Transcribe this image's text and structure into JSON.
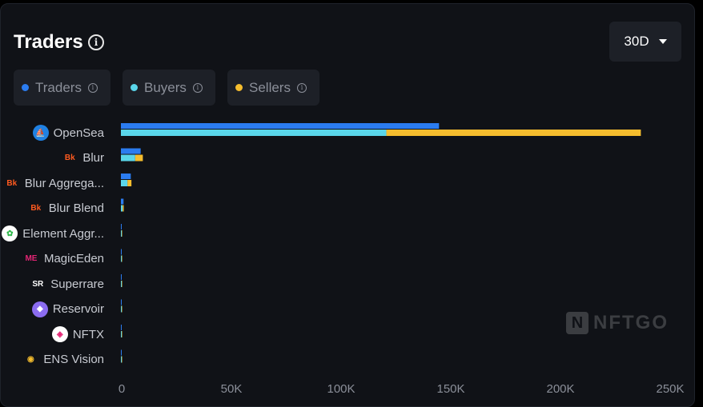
{
  "header": {
    "title": "Traders",
    "range_label": "30D"
  },
  "legend": [
    {
      "label": "Traders",
      "color": "#2b7cf0"
    },
    {
      "label": "Buyers",
      "color": "#5ad6ea"
    },
    {
      "label": "Sellers",
      "color": "#f5bd2e"
    }
  ],
  "watermark": "NFTGO",
  "chart_data": {
    "type": "bar",
    "orientation": "horizontal",
    "categories": [
      "OpenSea",
      "Blur",
      "Blur Aggrega...",
      "Blur Blend",
      "Element Aggr...",
      "MagicEden",
      "Superrare",
      "Reservoir",
      "NFTX",
      "ENS Vision"
    ],
    "category_icons": [
      "opensea-icon",
      "blur-icon",
      "blur-icon",
      "blur-icon",
      "element-icon",
      "magiceden-icon",
      "superrare-icon",
      "reservoir-icon",
      "nftx-icon",
      "ens-vision-icon"
    ],
    "series": [
      {
        "name": "Traders",
        "values": [
          145000,
          9000,
          4500,
          1200,
          300,
          300,
          200,
          200,
          200,
          100
        ]
      },
      {
        "name": "Buyers",
        "values": [
          121000,
          6500,
          3000,
          800,
          200,
          200,
          150,
          150,
          150,
          80
        ]
      },
      {
        "name": "Sellers",
        "values": [
          116000,
          3500,
          1800,
          500,
          150,
          100,
          100,
          100,
          100,
          50
        ]
      }
    ],
    "stacked_series": [
      "Buyers",
      "Sellers"
    ],
    "xlim": [
      0,
      250000
    ],
    "xticks": [
      "0",
      "50K",
      "100K",
      "150K",
      "200K",
      "250K"
    ],
    "xtick_values": [
      0,
      50000,
      100000,
      150000,
      200000,
      250000
    ],
    "legend_position": "top"
  }
}
